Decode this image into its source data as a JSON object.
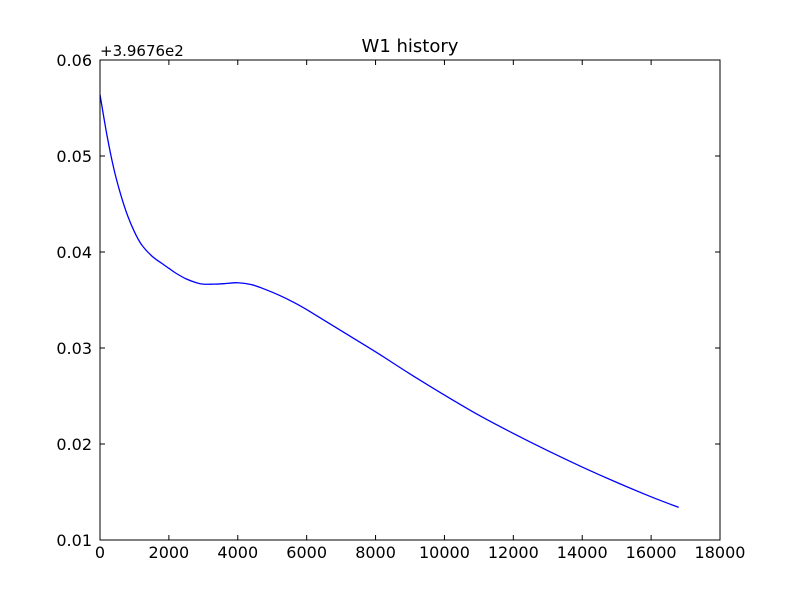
{
  "chart_data": {
    "type": "line",
    "title": "W1 history",
    "xlabel": "",
    "ylabel": "",
    "y_offset_label": "+3.9676e2",
    "xlim": [
      0,
      18000
    ],
    "ylim": [
      0.01,
      0.06
    ],
    "x_ticks": [
      "0",
      "2000",
      "4000",
      "6000",
      "8000",
      "10000",
      "12000",
      "14000",
      "16000",
      "18000"
    ],
    "y_ticks": [
      "0.01",
      "0.02",
      "0.03",
      "0.04",
      "0.05",
      "0.06"
    ],
    "grid": false,
    "legend": "none",
    "series": [
      {
        "color": "#0000ff",
        "x": [
          0,
          200,
          400,
          600,
          800,
          1000,
          1200,
          1500,
          1800,
          2000,
          2200,
          2500,
          2800,
          3000,
          3300,
          3600,
          4000,
          4400,
          4800,
          5200,
          5600,
          6000,
          7000,
          8000,
          9000,
          10000,
          11000,
          12000,
          13000,
          14000,
          15000,
          16000,
          16800
        ],
        "y": [
          0.0564,
          0.0522,
          0.0487,
          0.046,
          0.0438,
          0.0421,
          0.0408,
          0.0396,
          0.0388,
          0.0383,
          0.0378,
          0.0372,
          0.0368,
          0.03665,
          0.03665,
          0.0367,
          0.0368,
          0.0366,
          0.0361,
          0.0355,
          0.0348,
          0.034,
          0.0318,
          0.0296,
          0.0273,
          0.0251,
          0.023,
          0.0211,
          0.0193,
          0.0176,
          0.016,
          0.0145,
          0.0134
        ]
      }
    ]
  }
}
